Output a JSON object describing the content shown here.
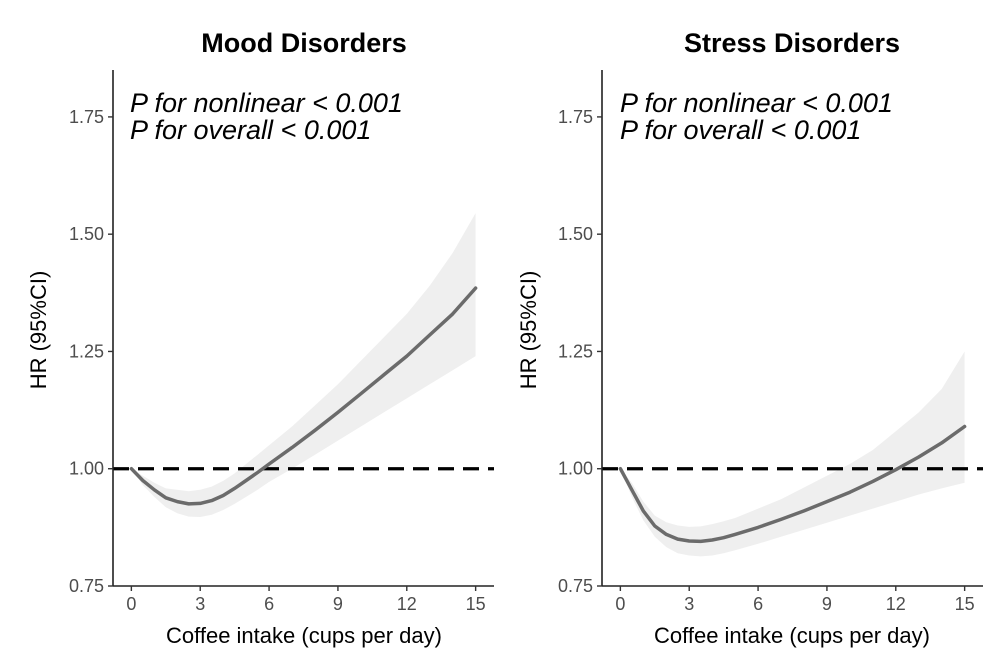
{
  "chart_data": [
    {
      "type": "line",
      "title": "Mood Disorders",
      "xlabel": "Coffee intake (cups per day)",
      "ylabel": "HR (95%CI)",
      "xlim": [
        -0.8,
        15.8
      ],
      "ylim": [
        0.75,
        1.85
      ],
      "xticks": [
        0,
        3,
        6,
        9,
        12,
        15
      ],
      "xtick_labels": [
        "0",
        "3",
        "6",
        "9",
        "12",
        "15"
      ],
      "yticks": [
        0.75,
        1.0,
        1.25,
        1.5,
        1.75
      ],
      "ytick_labels": [
        "0.75",
        "1.00",
        "1.25",
        "1.50",
        "1.75"
      ],
      "annotations": [
        "P for nonlinear < 0.001",
        "P for overall < 0.001"
      ],
      "reference_line": {
        "y": 1.0,
        "style": "dashed"
      },
      "series": [
        {
          "x": [
            0,
            0.5,
            1,
            1.5,
            2,
            2.5,
            3,
            3.5,
            4,
            4.5,
            5,
            5.5,
            6,
            7,
            8,
            9,
            10,
            11,
            12,
            13,
            14,
            15
          ],
          "y": [
            1.0,
            0.975,
            0.955,
            0.938,
            0.93,
            0.925,
            0.926,
            0.932,
            0.943,
            0.958,
            0.975,
            0.992,
            1.01,
            1.045,
            1.082,
            1.12,
            1.16,
            1.2,
            1.24,
            1.285,
            1.33,
            1.385
          ],
          "lower": [
            1.0,
            0.965,
            0.94,
            0.918,
            0.905,
            0.898,
            0.897,
            0.902,
            0.912,
            0.925,
            0.94,
            0.955,
            0.972,
            1.0,
            1.03,
            1.06,
            1.09,
            1.12,
            1.15,
            1.18,
            1.21,
            1.24
          ],
          "upper": [
            1.0,
            0.985,
            0.97,
            0.958,
            0.955,
            0.952,
            0.955,
            0.962,
            0.974,
            0.99,
            1.01,
            1.03,
            1.05,
            1.09,
            1.135,
            1.18,
            1.23,
            1.28,
            1.33,
            1.39,
            1.46,
            1.545
          ]
        }
      ]
    },
    {
      "type": "line",
      "title": "Stress Disorders",
      "xlabel": "Coffee intake (cups per day)",
      "ylabel": "HR (95%CI)",
      "xlim": [
        -0.8,
        15.8
      ],
      "ylim": [
        0.75,
        1.85
      ],
      "xticks": [
        0,
        3,
        6,
        9,
        12,
        15
      ],
      "xtick_labels": [
        "0",
        "3",
        "6",
        "9",
        "12",
        "15"
      ],
      "yticks": [
        0.75,
        1.0,
        1.25,
        1.5,
        1.75
      ],
      "ytick_labels": [
        "0.75",
        "1.00",
        "1.25",
        "1.50",
        "1.75"
      ],
      "annotations": [
        "P for nonlinear < 0.001",
        "P for overall < 0.001"
      ],
      "reference_line": {
        "y": 1.0,
        "style": "dashed"
      },
      "series": [
        {
          "x": [
            0,
            0.5,
            1,
            1.5,
            2,
            2.5,
            3,
            3.5,
            4,
            4.5,
            5,
            6,
            7,
            8,
            9,
            10,
            11,
            12,
            13,
            14,
            15
          ],
          "y": [
            1.0,
            0.955,
            0.91,
            0.878,
            0.86,
            0.85,
            0.846,
            0.845,
            0.848,
            0.853,
            0.86,
            0.875,
            0.892,
            0.91,
            0.93,
            0.95,
            0.973,
            0.998,
            1.025,
            1.055,
            1.09
          ],
          "lower": [
            1.0,
            0.94,
            0.89,
            0.855,
            0.833,
            0.82,
            0.815,
            0.813,
            0.815,
            0.82,
            0.826,
            0.84,
            0.855,
            0.87,
            0.885,
            0.9,
            0.915,
            0.93,
            0.945,
            0.958,
            0.97
          ],
          "upper": [
            1.0,
            0.97,
            0.93,
            0.9,
            0.886,
            0.879,
            0.876,
            0.877,
            0.882,
            0.888,
            0.895,
            0.915,
            0.935,
            0.96,
            0.985,
            1.01,
            1.04,
            1.08,
            1.12,
            1.17,
            1.25
          ]
        }
      ]
    }
  ]
}
